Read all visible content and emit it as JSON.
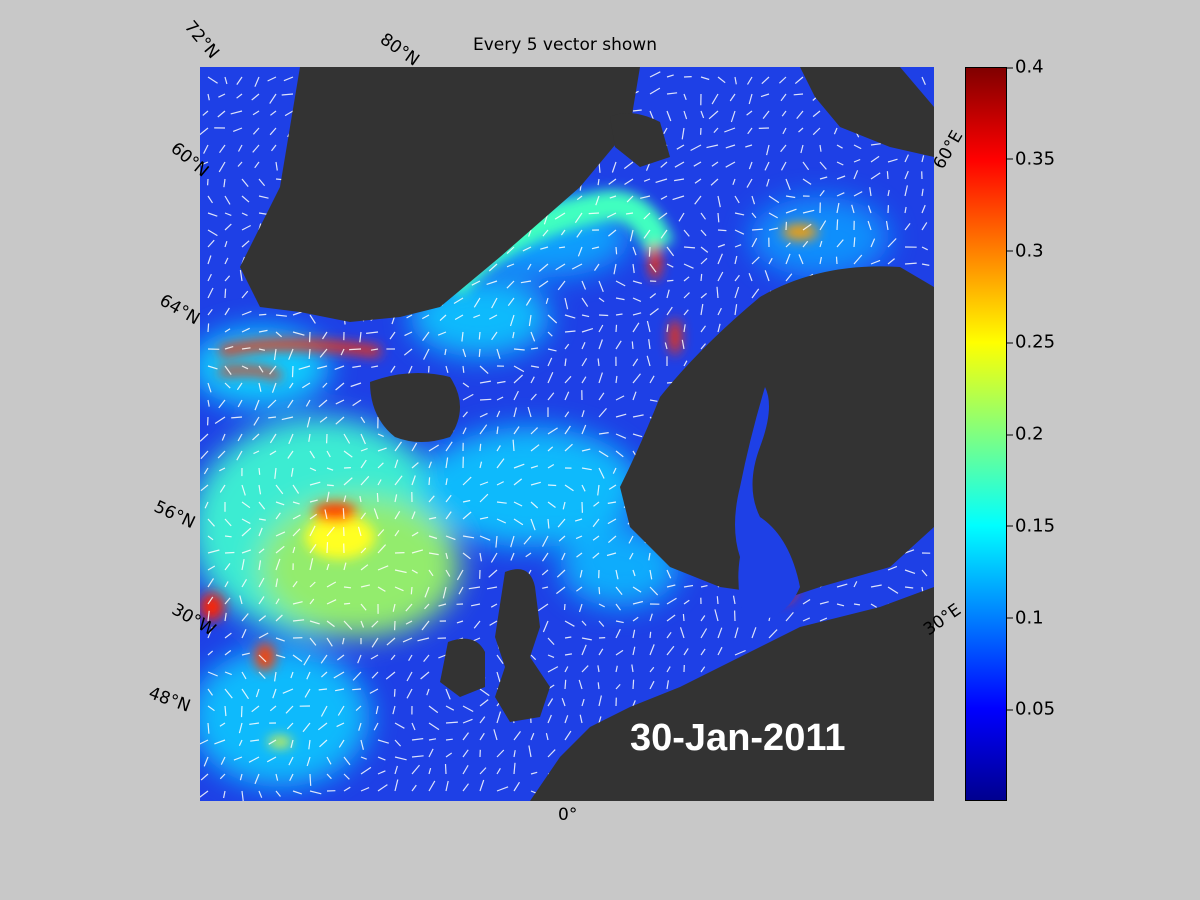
{
  "title": "Every 5 vector shown",
  "date": "30-Jan-2011",
  "grid_labels": {
    "lat_72": "72°N",
    "lat_80": "80°N",
    "lat_60_top": "60°N",
    "lat_64": "64°N",
    "lat_56": "56°N",
    "lat_48": "48°N",
    "lon_30w": "30°W",
    "lon_0": "0°",
    "lon_30e": "30°E",
    "lon_60e": "60°E"
  },
  "colorbar": {
    "min": 0,
    "max": 0.4,
    "ticks": [
      "0.4",
      "0.35",
      "0.3",
      "0.25",
      "0.2",
      "0.15",
      "0.1",
      "0.05"
    ],
    "tick_values": [
      0.4,
      0.35,
      0.3,
      0.25,
      0.2,
      0.15,
      0.1,
      0.05
    ],
    "colormap": "jet"
  },
  "colors": {
    "land": "#333333",
    "ocean_low": "#1e40e6",
    "figure_background": "#c8c8c8",
    "vectors": "#ffffff"
  }
}
